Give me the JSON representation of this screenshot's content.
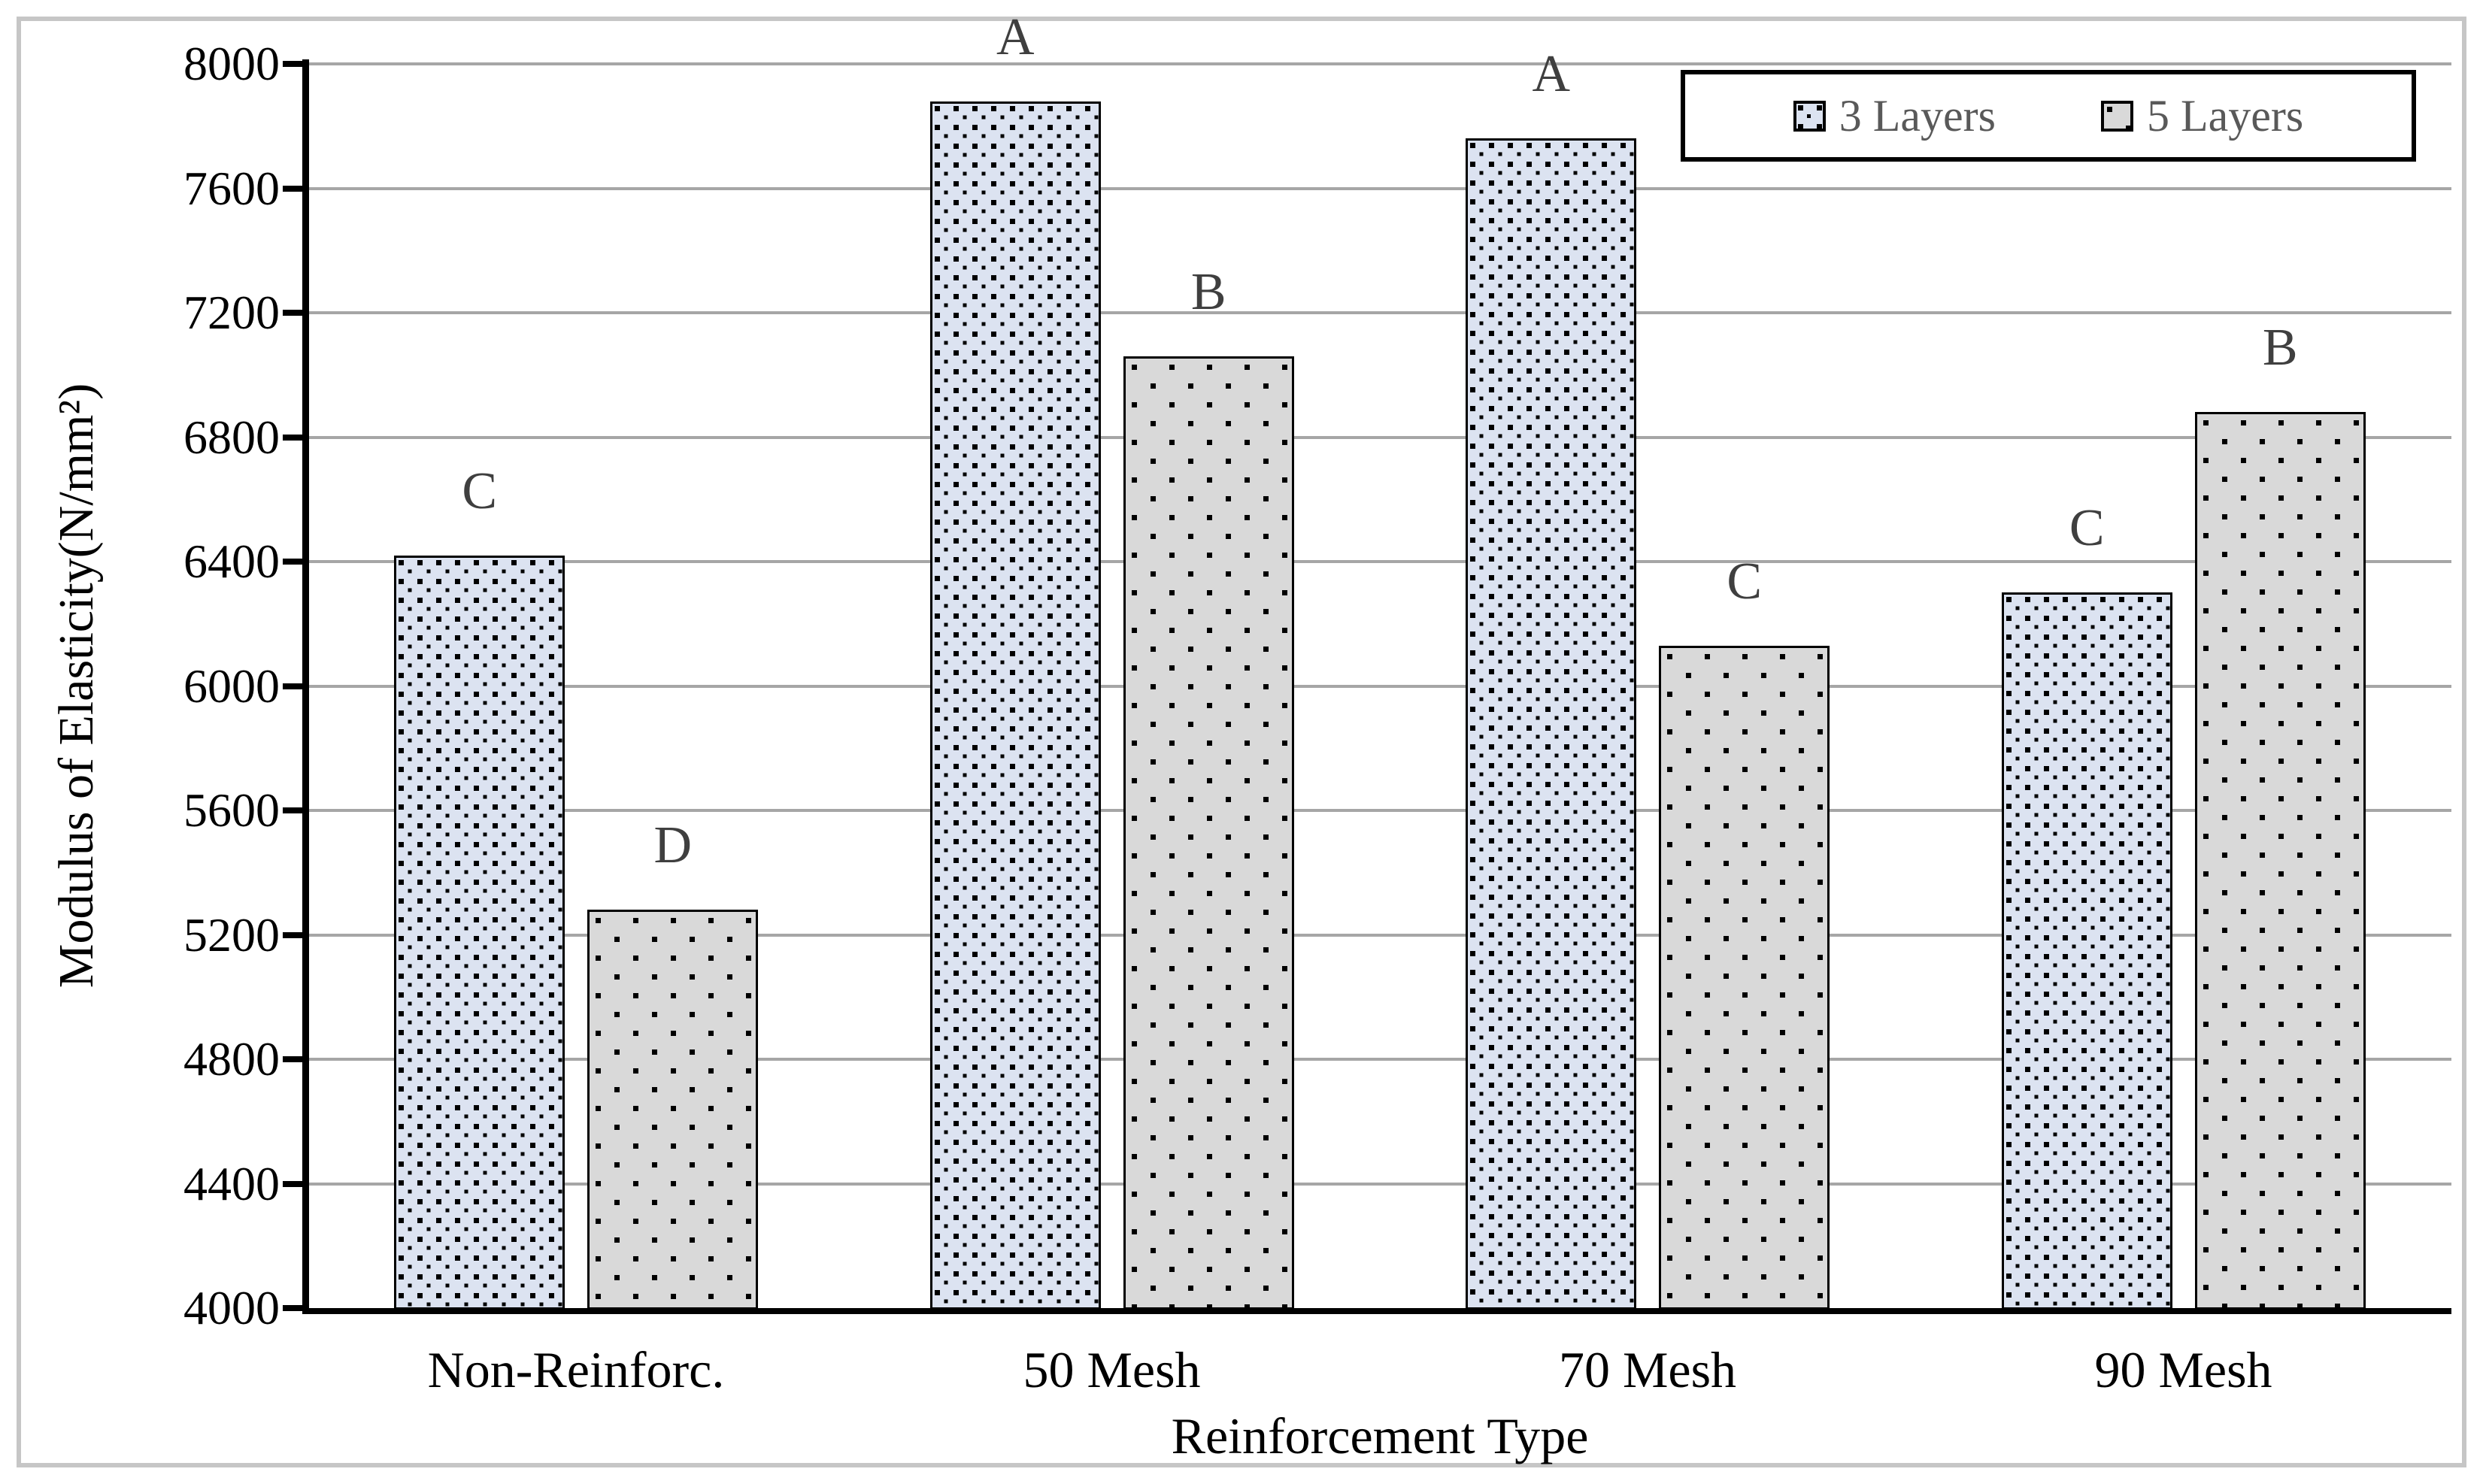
{
  "figure": {
    "frame_border_color": "#c6c6c6",
    "background_color": "#ffffff"
  },
  "legend": {
    "position": "top-right",
    "items": [
      {
        "label": "3 Layers",
        "swatch": "blue-dense-dot-pattern"
      },
      {
        "label": "5 Layers",
        "swatch": "gray-sparse-dot-pattern"
      }
    ]
  },
  "chart_data": {
    "type": "bar",
    "title": "",
    "xlabel": "Reinforcement Type",
    "ylabel": "Modulus of Elasticity(N/mm²)",
    "categories": [
      "Non-Reinforc.",
      "50 Mesh",
      "70 Mesh",
      "90 Mesh"
    ],
    "series": [
      {
        "name": "3 Layers",
        "values": [
          6420,
          7880,
          7760,
          6300
        ],
        "letters": [
          "C",
          "A",
          "A",
          "C"
        ],
        "fill": "#dce3f1",
        "pattern": "dense-black-square-dots"
      },
      {
        "name": "5 Layers",
        "values": [
          5280,
          7060,
          6130,
          6880
        ],
        "letters": [
          "D",
          "B",
          "C",
          "B"
        ],
        "fill": "#d9d9d9",
        "pattern": "sparse-black-square-dots"
      }
    ],
    "ylim": [
      4000,
      8000
    ],
    "yticks": [
      4000,
      4400,
      4800,
      5200,
      5600,
      6000,
      6400,
      6800,
      7200,
      7600,
      8000
    ],
    "grid": true,
    "gridline_color": "#a6a6a6",
    "axis_color": "#000000",
    "annotation_color": "#3f3f3f",
    "legend_text_color": "#595959",
    "legend_position": "top-right"
  }
}
